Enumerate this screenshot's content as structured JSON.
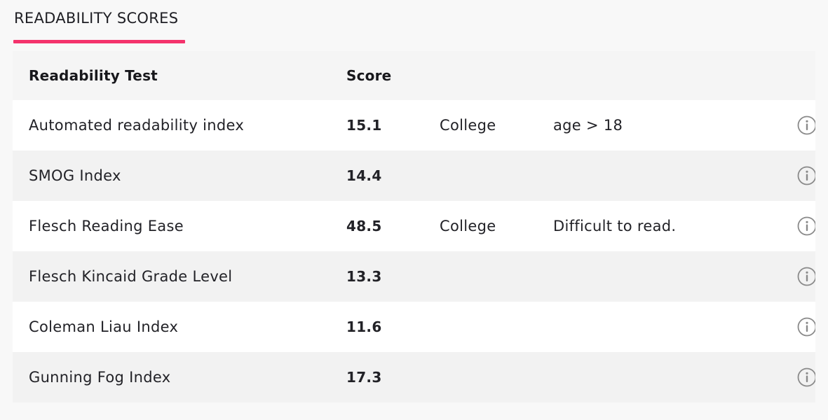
{
  "section": {
    "title": "READABILITY SCORES",
    "accent_color": "#f4336c"
  },
  "table": {
    "headers": {
      "test": "Readability Test",
      "score": "Score"
    },
    "rows": [
      {
        "test": "Automated readability index",
        "score": "15.1",
        "level": "College",
        "description": "age > 18",
        "icon": "info-icon"
      },
      {
        "test": "SMOG Index",
        "score": "14.4",
        "level": "",
        "description": "",
        "icon": "info-icon"
      },
      {
        "test": "Flesch Reading Ease",
        "score": "48.5",
        "level": "College",
        "description": "Difficult to read.",
        "icon": "info-icon"
      },
      {
        "test": "Flesch Kincaid Grade Level",
        "score": "13.3",
        "level": "",
        "description": "",
        "icon": "info-icon"
      },
      {
        "test": "Coleman Liau Index",
        "score": "11.6",
        "level": "",
        "description": "",
        "icon": "info-icon"
      },
      {
        "test": "Gunning Fog Index",
        "score": "17.3",
        "level": "",
        "description": "",
        "icon": "info-icon"
      }
    ]
  }
}
